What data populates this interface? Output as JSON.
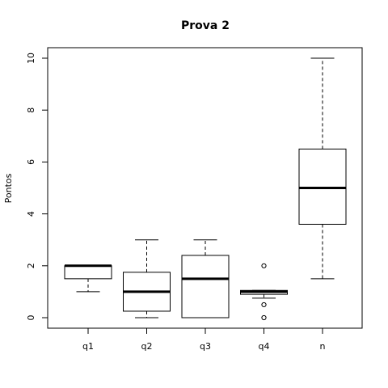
{
  "chart_data": {
    "type": "boxplot",
    "title": "Prova 2",
    "xlabel": "",
    "ylabel": "Pontos",
    "ylim": [
      0,
      10
    ],
    "yticks": [
      0,
      2,
      4,
      6,
      8,
      10
    ],
    "categories": [
      "q1",
      "q2",
      "q3",
      "q4",
      "n"
    ],
    "boxes": [
      {
        "name": "q1",
        "whisker_low": 1.0,
        "q1": 1.5,
        "median": 2.0,
        "q3": 2.0,
        "whisker_high": 2.0,
        "outliers": []
      },
      {
        "name": "q2",
        "whisker_low": 0.0,
        "q1": 0.25,
        "median": 1.0,
        "q3": 1.75,
        "whisker_high": 3.0,
        "outliers": []
      },
      {
        "name": "q3",
        "whisker_low": 0.0,
        "q1": 0.0,
        "median": 1.5,
        "q3": 2.4,
        "whisker_high": 3.0,
        "outliers": []
      },
      {
        "name": "q4",
        "whisker_low": 0.75,
        "q1": 0.9,
        "median": 1.0,
        "q3": 1.05,
        "whisker_high": 1.05,
        "outliers": [
          2.0,
          0.5,
          0.0
        ]
      },
      {
        "name": "n",
        "whisker_low": 1.5,
        "q1": 3.6,
        "median": 5.0,
        "q3": 6.5,
        "whisker_high": 10.0,
        "outliers": []
      }
    ]
  }
}
